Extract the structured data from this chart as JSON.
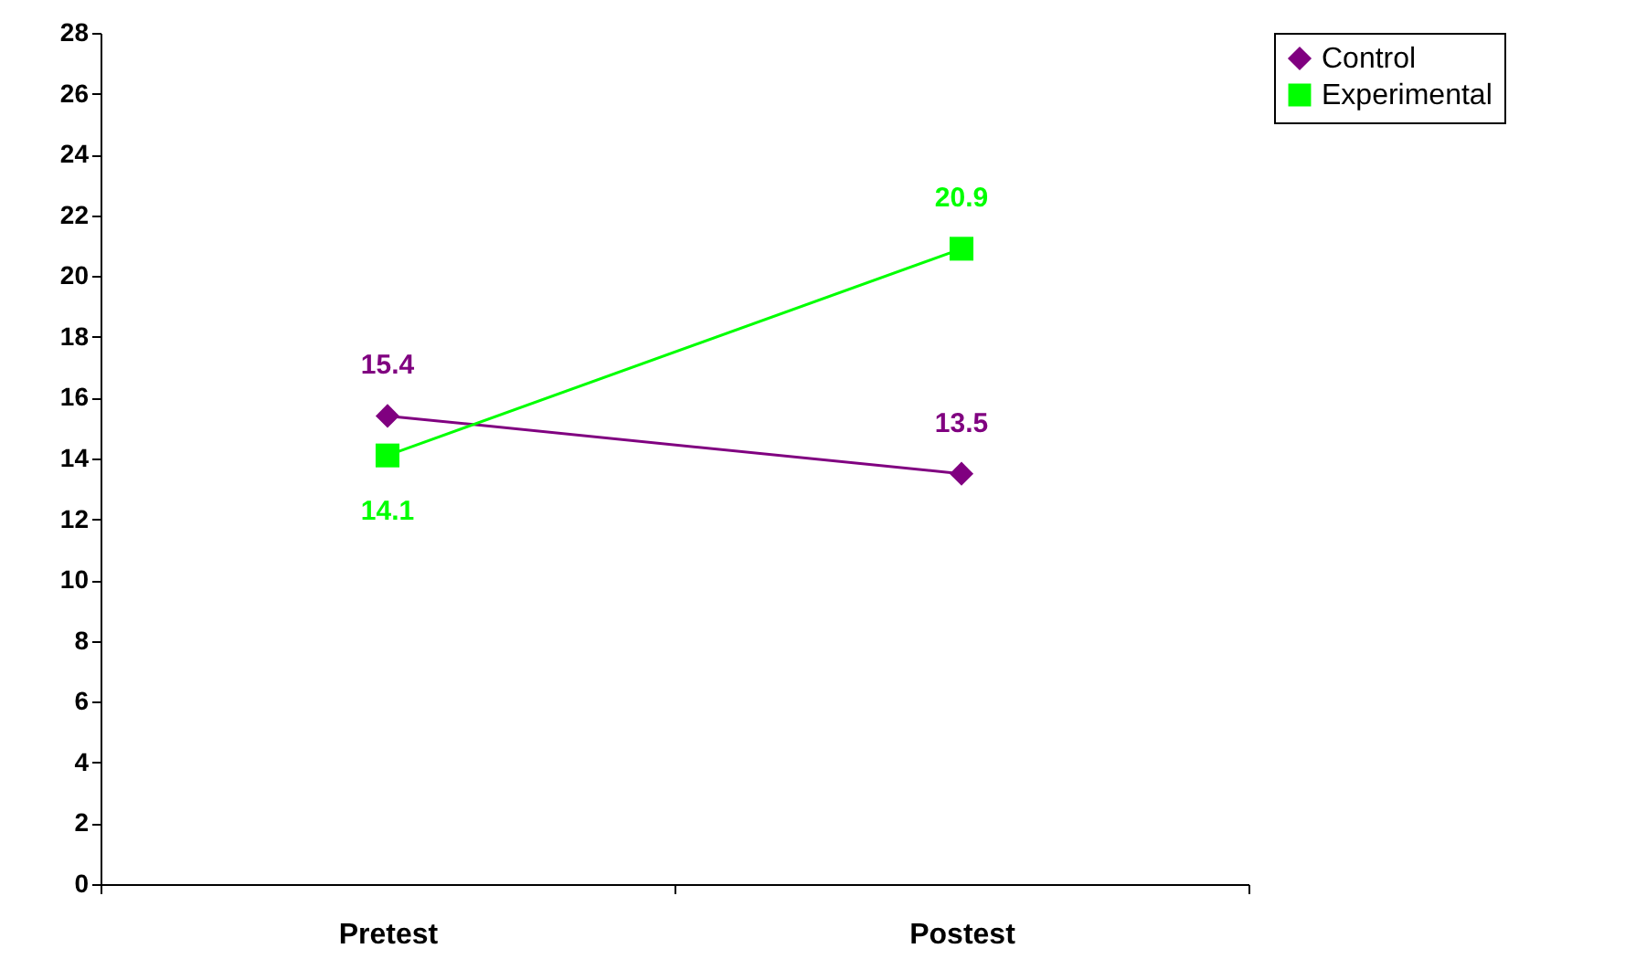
{
  "chart_data": {
    "type": "line",
    "categories": [
      "Pretest",
      "Postest"
    ],
    "series": [
      {
        "name": "Control",
        "color": "#800080",
        "marker": "diamond",
        "values": [
          15.4,
          13.5
        ]
      },
      {
        "name": "Experimental",
        "color": "#00ff00",
        "marker": "square",
        "values": [
          14.1,
          20.9
        ]
      }
    ],
    "ylim": [
      0,
      28
    ],
    "yticks": [
      0,
      2,
      4,
      6,
      8,
      10,
      12,
      14,
      16,
      18,
      20,
      22,
      24,
      26,
      28
    ],
    "grid": false,
    "legend": "right",
    "data_labels": true
  }
}
